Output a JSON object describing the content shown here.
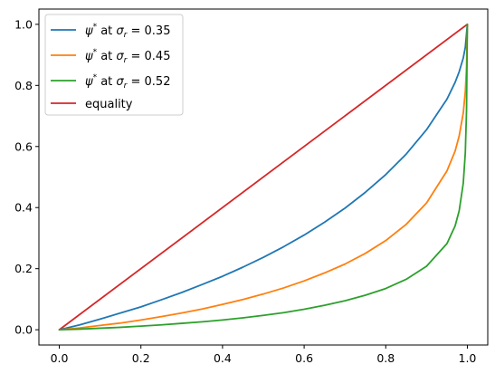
{
  "chart_data": {
    "type": "line",
    "title": "",
    "xlabel": "",
    "ylabel": "",
    "xlim": [
      -0.05,
      1.05
    ],
    "ylim": [
      -0.05,
      1.05
    ],
    "x_ticks": [
      0.0,
      0.2,
      0.4,
      0.6,
      0.8,
      1.0
    ],
    "y_ticks": [
      0.0,
      0.2,
      0.4,
      0.6,
      0.8,
      1.0
    ],
    "x_tick_labels": [
      "0.0",
      "0.2",
      "0.4",
      "0.6",
      "0.8",
      "1.0"
    ],
    "y_tick_labels": [
      "0.0",
      "0.2",
      "0.4",
      "0.6",
      "0.8",
      "1.0"
    ],
    "grid": false,
    "legend_position": "top-left",
    "series": [
      {
        "name": "ψ* at σr = 0.35",
        "legend": {
          "pre": "ψ",
          "sup": "*",
          "mid": " at ",
          "var": "σ",
          "sub": "r",
          "post": " = 0.35"
        },
        "color": "#1f77b4",
        "points": [
          [
            0.0,
            0.0
          ],
          [
            0.05,
            0.016
          ],
          [
            0.1,
            0.035
          ],
          [
            0.15,
            0.055
          ],
          [
            0.2,
            0.075
          ],
          [
            0.25,
            0.098
          ],
          [
            0.3,
            0.122
          ],
          [
            0.35,
            0.148
          ],
          [
            0.4,
            0.175
          ],
          [
            0.45,
            0.205
          ],
          [
            0.5,
            0.237
          ],
          [
            0.55,
            0.272
          ],
          [
            0.6,
            0.31
          ],
          [
            0.65,
            0.352
          ],
          [
            0.7,
            0.398
          ],
          [
            0.75,
            0.45
          ],
          [
            0.8,
            0.508
          ],
          [
            0.85,
            0.575
          ],
          [
            0.9,
            0.655
          ],
          [
            0.95,
            0.755
          ],
          [
            0.97,
            0.81
          ],
          [
            0.98,
            0.845
          ],
          [
            0.99,
            0.89
          ],
          [
            0.995,
            0.925
          ],
          [
            1.0,
            1.0
          ]
        ]
      },
      {
        "name": "ψ* at σr = 0.45",
        "legend": {
          "pre": "ψ",
          "sup": "*",
          "mid": " at ",
          "var": "σ",
          "sub": "r",
          "post": " = 0.45"
        },
        "color": "#ff7f0e",
        "points": [
          [
            0.0,
            0.0
          ],
          [
            0.05,
            0.006
          ],
          [
            0.1,
            0.014
          ],
          [
            0.15,
            0.022
          ],
          [
            0.2,
            0.032
          ],
          [
            0.25,
            0.043
          ],
          [
            0.3,
            0.055
          ],
          [
            0.35,
            0.068
          ],
          [
            0.4,
            0.083
          ],
          [
            0.45,
            0.099
          ],
          [
            0.5,
            0.117
          ],
          [
            0.55,
            0.137
          ],
          [
            0.6,
            0.16
          ],
          [
            0.65,
            0.186
          ],
          [
            0.7,
            0.215
          ],
          [
            0.75,
            0.25
          ],
          [
            0.8,
            0.292
          ],
          [
            0.85,
            0.345
          ],
          [
            0.9,
            0.415
          ],
          [
            0.95,
            0.52
          ],
          [
            0.97,
            0.585
          ],
          [
            0.98,
            0.635
          ],
          [
            0.99,
            0.71
          ],
          [
            0.995,
            0.78
          ],
          [
            0.998,
            0.86
          ],
          [
            1.0,
            1.0
          ]
        ]
      },
      {
        "name": "ψ* at σr = 0.52",
        "legend": {
          "pre": "ψ",
          "sup": "*",
          "mid": " at ",
          "var": "σ",
          "sub": "r",
          "post": " = 0.52"
        },
        "color": "#2ca02c",
        "points": [
          [
            0.0,
            0.0
          ],
          [
            0.05,
            0.002
          ],
          [
            0.1,
            0.005
          ],
          [
            0.15,
            0.008
          ],
          [
            0.2,
            0.012
          ],
          [
            0.25,
            0.016
          ],
          [
            0.3,
            0.021
          ],
          [
            0.35,
            0.026
          ],
          [
            0.4,
            0.032
          ],
          [
            0.45,
            0.039
          ],
          [
            0.5,
            0.047
          ],
          [
            0.55,
            0.056
          ],
          [
            0.6,
            0.067
          ],
          [
            0.65,
            0.08
          ],
          [
            0.7,
            0.095
          ],
          [
            0.75,
            0.113
          ],
          [
            0.8,
            0.135
          ],
          [
            0.85,
            0.165
          ],
          [
            0.9,
            0.208
          ],
          [
            0.95,
            0.282
          ],
          [
            0.97,
            0.34
          ],
          [
            0.98,
            0.39
          ],
          [
            0.99,
            0.48
          ],
          [
            0.995,
            0.58
          ],
          [
            0.998,
            0.72
          ],
          [
            1.0,
            1.0
          ]
        ]
      },
      {
        "name": "equality",
        "color": "#d62728",
        "points": [
          [
            0.0,
            0.0
          ],
          [
            1.0,
            1.0
          ]
        ]
      }
    ]
  }
}
